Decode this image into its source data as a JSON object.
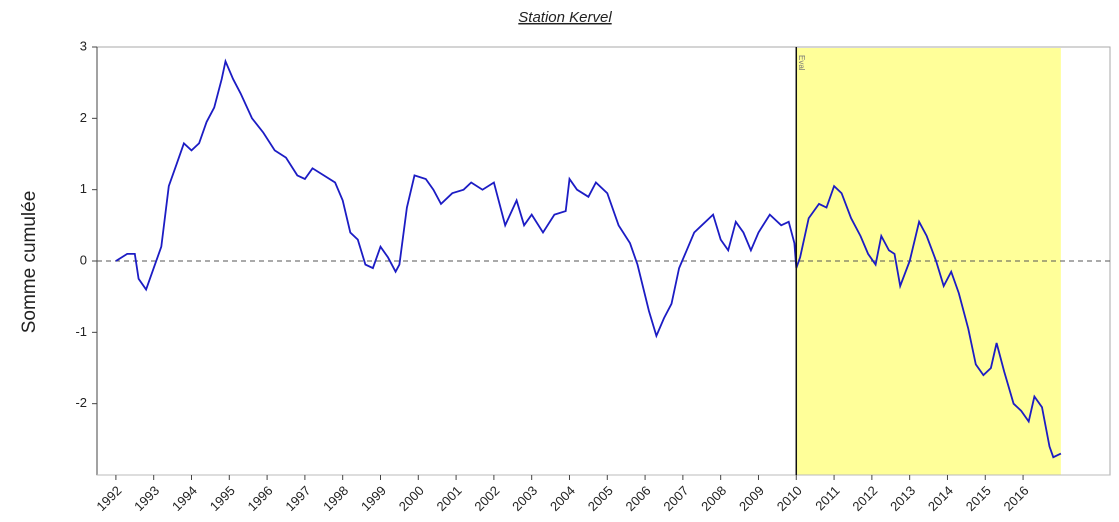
{
  "chart_data": {
    "type": "line",
    "title": "Station Kervel",
    "ylabel": "Somme cumulée",
    "x": [
      1992.0,
      1992.3,
      1992.5,
      1992.6,
      1992.8,
      1993.0,
      1993.2,
      1993.4,
      1993.6,
      1993.8,
      1994.0,
      1994.2,
      1994.4,
      1994.6,
      1994.8,
      1994.9,
      1995.1,
      1995.3,
      1995.6,
      1995.9,
      1996.2,
      1996.5,
      1996.8,
      1997.0,
      1997.2,
      1997.5,
      1997.8,
      1998.0,
      1998.2,
      1998.4,
      1998.6,
      1998.8,
      1999.0,
      1999.2,
      1999.4,
      1999.5,
      1999.7,
      1999.9,
      2000.2,
      2000.4,
      2000.6,
      2000.9,
      2001.2,
      2001.4,
      2001.7,
      2002.0,
      2002.3,
      2002.6,
      2002.8,
      2003.0,
      2003.3,
      2003.6,
      2003.9,
      2004.0,
      2004.2,
      2004.5,
      2004.7,
      2005.0,
      2005.3,
      2005.6,
      2005.8,
      2006.1,
      2006.3,
      2006.5,
      2006.7,
      2006.9,
      2007.1,
      2007.3,
      2007.5,
      2007.8,
      2008.0,
      2008.2,
      2008.4,
      2008.6,
      2008.8,
      2009.0,
      2009.3,
      2009.6,
      2009.8,
      2009.95,
      2010.0,
      2010.1,
      2010.33,
      2010.6,
      2010.8,
      2011.0,
      2011.2,
      2011.45,
      2011.7,
      2011.9,
      2012.1,
      2012.25,
      2012.45,
      2012.6,
      2012.75,
      2013.0,
      2013.25,
      2013.45,
      2013.7,
      2013.9,
      2014.1,
      2014.3,
      2014.55,
      2014.75,
      2014.95,
      2015.15,
      2015.3,
      2015.5,
      2015.75,
      2015.95,
      2016.15,
      2016.3,
      2016.5,
      2016.7,
      2016.8,
      2017.0
    ],
    "series": [
      {
        "name": "Somme cumulée",
        "color": "#1c1cc4",
        "values": [
          0,
          0.1,
          0.1,
          -0.25,
          -0.4,
          -0.1,
          0.2,
          1.05,
          1.35,
          1.65,
          1.55,
          1.65,
          1.95,
          2.15,
          2.55,
          2.8,
          2.55,
          2.35,
          2.0,
          1.8,
          1.55,
          1.45,
          1.2,
          1.15,
          1.3,
          1.2,
          1.1,
          0.85,
          0.4,
          0.3,
          -0.05,
          -0.1,
          0.2,
          0.05,
          -0.15,
          -0.05,
          0.75,
          1.2,
          1.15,
          1.0,
          0.8,
          0.95,
          1.0,
          1.1,
          1.0,
          1.1,
          0.5,
          0.85,
          0.5,
          0.65,
          0.4,
          0.65,
          0.7,
          1.15,
          1.0,
          0.9,
          1.1,
          0.95,
          0.5,
          0.25,
          -0.05,
          -0.7,
          -1.05,
          -0.8,
          -0.6,
          -0.1,
          0.15,
          0.4,
          0.5,
          0.65,
          0.3,
          0.15,
          0.55,
          0.4,
          0.15,
          0.4,
          0.65,
          0.5,
          0.55,
          0.25,
          -0.1,
          0.05,
          0.6,
          0.8,
          0.75,
          1.05,
          0.95,
          0.6,
          0.35,
          0.1,
          -0.05,
          0.35,
          0.15,
          0.1,
          -0.35,
          0.0,
          0.55,
          0.35,
          0.0,
          -0.35,
          -0.15,
          -0.45,
          -0.95,
          -1.45,
          -1.6,
          -1.5,
          -1.15,
          -1.55,
          -2.0,
          -2.1,
          -2.25,
          -1.9,
          -2.05,
          -2.6,
          -2.75,
          -2.7
        ]
      }
    ],
    "xlim": [
      1991.5,
      2018.3
    ],
    "xticks": [
      1992,
      1993,
      1994,
      1995,
      1996,
      1997,
      1998,
      1999,
      2000,
      2001,
      2002,
      2003,
      2004,
      2005,
      2006,
      2007,
      2008,
      2009,
      2010,
      2011,
      2012,
      2013,
      2014,
      2015,
      2016
    ],
    "ylim": [
      -3,
      3
    ],
    "yticks": [
      -2,
      -1,
      0,
      1,
      2,
      3
    ],
    "highlight_region": {
      "xlim": [
        2010,
        2017
      ],
      "color": "#ffff99"
    },
    "vline": {
      "x": 2010,
      "label": "Eval"
    },
    "hline": {
      "y": 0,
      "style": "dashed"
    }
  }
}
